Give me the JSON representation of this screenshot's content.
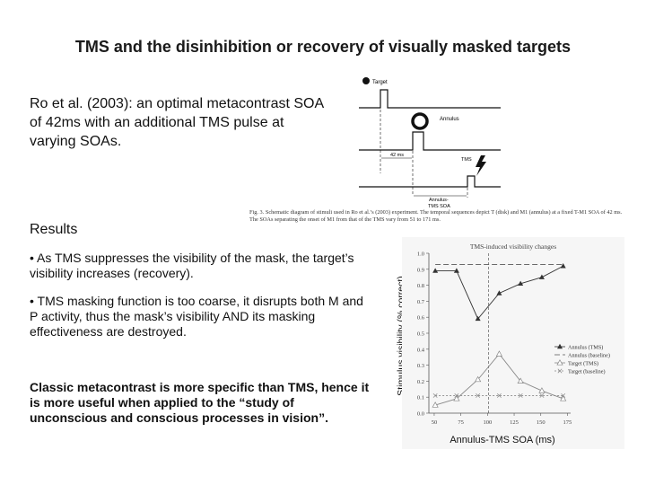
{
  "slide": {
    "title": "TMS and the disinhibition or recovery of visually masked targets",
    "intro": "Ro et al. (2003): an optimal metacontrast SOA of 42ms with an additional TMS pulse at varying SOAs.",
    "results_heading": "Results",
    "bullets": [
      "• As TMS suppresses the visibility of the mask, the target’s visibility increases (recovery).",
      "• TMS masking function is too coarse, it disrupts both M and P activity, thus the mask’s visibility AND its masking effectiveness are destroyed."
    ],
    "conclusion": "Classic metacontrast is more specific than TMS, hence it is more useful when applied to the “study of unconscious and conscious processes in vision”."
  },
  "diagram": {
    "labels": {
      "target": "Target",
      "annulus": "Annulus",
      "tms": "TMS",
      "soa42": "42 ms",
      "annulus_tms_soa_1": "Annulus-",
      "annulus_tms_soa_2": "TMS SOA"
    },
    "caption": "Fig. 3.  Schematic diagram of stimuli used in Ro et al.’s (2003) experiment. The temporal sequences depict T (disk) and M1 (annulus) at a fixed T-M1 SOA of 42 ms. The SOAs separating the onset of M1 from that of the TMS vary from 51 to 171 ms."
  },
  "chart_data": {
    "type": "line",
    "title": "TMS-induced visibility changes",
    "xlabel": "Annulus-TMS SOA (ms)",
    "ylabel": "Stimulus visibility (% correct)",
    "x": [
      51,
      71,
      91,
      111,
      131,
      151,
      171
    ],
    "x_ticks": [
      50,
      75,
      100,
      125,
      150,
      175
    ],
    "xlim": [
      45,
      178
    ],
    "ylim": [
      0,
      1.0
    ],
    "y_ticks": [
      0,
      0.1,
      0.2,
      0.3,
      0.4,
      0.5,
      0.6,
      0.7,
      0.8,
      0.9,
      1.0
    ],
    "marker_x": 101,
    "series": [
      {
        "name": "Annulus (TMS)",
        "values": [
          0.89,
          0.89,
          0.59,
          0.75,
          0.81,
          0.85,
          0.92
        ],
        "color": "#333333",
        "dash": "",
        "marker": "triangle"
      },
      {
        "name": "Annulus (baseline)",
        "values": [
          0.93,
          0.93,
          0.93,
          0.93,
          0.93,
          0.93,
          0.93
        ],
        "color": "#555555",
        "dash": "6,3",
        "marker": "none"
      },
      {
        "name": "Target (TMS)",
        "values": [
          0.05,
          0.09,
          0.21,
          0.37,
          0.2,
          0.14,
          0.09
        ],
        "color": "#888888",
        "dash": "",
        "marker": "open-triangle"
      },
      {
        "name": "Target (baseline)",
        "values": [
          0.11,
          0.11,
          0.11,
          0.11,
          0.11,
          0.11,
          0.11
        ],
        "color": "#888888",
        "dash": "2,2",
        "marker": "cross"
      }
    ],
    "legend_position": "right-middle"
  }
}
